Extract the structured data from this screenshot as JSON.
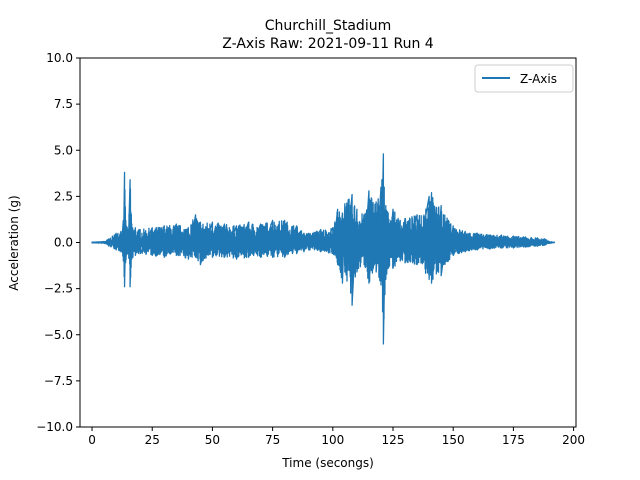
{
  "chart_data": {
    "type": "line",
    "title": "Churchill_Stadium",
    "subtitle": "Z-Axis Raw: 2021-09-11 Run 4",
    "xlabel": "Time (secongs)",
    "ylabel": "Acceleration (g)",
    "xlim": [
      -5,
      201
    ],
    "ylim": [
      -10,
      10
    ],
    "x_ticks": [
      0,
      25,
      50,
      75,
      100,
      125,
      150,
      175,
      200
    ],
    "y_ticks": [
      -10.0,
      -7.5,
      -5.0,
      -2.5,
      0.0,
      2.5,
      5.0,
      7.5,
      10.0
    ],
    "x_tick_labels": [
      "0",
      "25",
      "50",
      "75",
      "100",
      "125",
      "150",
      "175",
      "200"
    ],
    "y_tick_labels": [
      "−10.0",
      "−7.5",
      "−5.0",
      "−2.5",
      "0.0",
      "2.5",
      "5.0",
      "7.5",
      "10.0"
    ],
    "grid": false,
    "legend_position": "top-right",
    "series": [
      {
        "name": "Z-Axis",
        "color": "#1f77b4",
        "envelope": {
          "x": [
            0,
            5,
            7,
            10,
            12,
            13,
            13.5,
            14,
            15,
            15.8,
            16.5,
            18,
            20,
            25,
            30,
            35,
            40,
            43,
            45,
            50,
            55,
            60,
            65,
            70,
            75,
            80,
            85,
            88,
            90,
            95,
            100,
            102,
            104,
            105,
            108,
            110,
            113,
            115,
            118,
            120,
            121,
            122,
            123,
            125,
            128,
            130,
            135,
            140,
            141,
            143,
            145,
            148,
            150,
            155,
            160,
            165,
            170,
            175,
            180,
            185,
            188,
            190,
            192
          ],
          "upper": [
            0.02,
            0.05,
            0.2,
            0.5,
            0.6,
            1.2,
            3.8,
            1.2,
            0.7,
            3.4,
            1.0,
            0.8,
            0.7,
            0.8,
            0.9,
            1.0,
            0.8,
            1.5,
            1.1,
            1.1,
            1.0,
            0.9,
            1.1,
            1.0,
            1.2,
            1.2,
            0.9,
            0.5,
            0.5,
            0.7,
            0.8,
            1.8,
            1.6,
            2.1,
            2.6,
            1.8,
            1.5,
            2.8,
            2.2,
            3.0,
            4.8,
            2.0,
            1.6,
            1.8,
            1.2,
            1.3,
            1.5,
            2.5,
            2.7,
            1.9,
            2.0,
            1.2,
            0.9,
            0.6,
            0.5,
            0.4,
            0.4,
            0.35,
            0.3,
            0.25,
            0.2,
            0.05,
            0.02
          ],
          "lower": [
            -0.02,
            -0.05,
            -0.2,
            -0.4,
            -0.5,
            -1.0,
            -2.4,
            -1.0,
            -0.6,
            -2.4,
            -0.9,
            -0.7,
            -0.6,
            -0.7,
            -0.8,
            -0.7,
            -0.9,
            -0.8,
            -1.2,
            -0.8,
            -0.8,
            -0.9,
            -0.8,
            -0.8,
            -0.8,
            -0.8,
            -0.6,
            -0.5,
            -0.4,
            -0.5,
            -0.6,
            -1.2,
            -2.2,
            -1.6,
            -3.4,
            -1.6,
            -1.2,
            -2.2,
            -1.6,
            -2.3,
            -5.5,
            -2.0,
            -1.4,
            -1.4,
            -1.0,
            -1.1,
            -1.2,
            -2.0,
            -2.2,
            -1.7,
            -1.8,
            -1.0,
            -0.7,
            -0.5,
            -0.4,
            -0.35,
            -0.3,
            -0.3,
            -0.25,
            -0.2,
            -0.15,
            -0.05,
            -0.02
          ]
        }
      }
    ]
  }
}
